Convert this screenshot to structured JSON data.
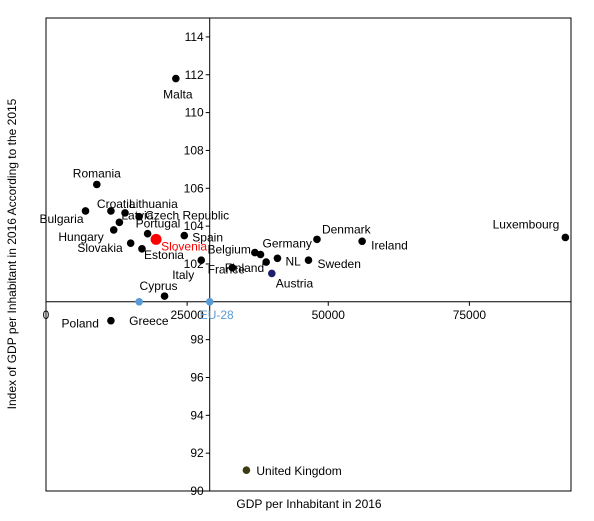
{
  "chart_data": {
    "type": "scatter",
    "title": "",
    "xlabel": "GDP per Inhabitant in 2016",
    "ylabel": "Index of GDP per Inhabitant in 2016 According to the 2015",
    "xlim": [
      0,
      93000
    ],
    "ylim": [
      90,
      115
    ],
    "x_ticks": [
      0,
      25000,
      50000,
      75000
    ],
    "x_tick_labels": [
      "0",
      "25000",
      "50000",
      "75000"
    ],
    "x_axis_crosses_y": 100,
    "y_ticks": [
      90,
      92,
      94,
      96,
      98,
      102,
      104,
      106,
      108,
      110,
      112,
      114
    ],
    "y_tick_labels": [
      "90",
      "92",
      "94",
      "96",
      "98",
      "102",
      "104",
      "106",
      "108",
      "110",
      "112",
      "114"
    ],
    "y_axis_crosses_x": 29000,
    "grid": false,
    "legend": "none",
    "colors": {
      "default": "#000000",
      "slovenia": "#ff0000",
      "eu28": "#5b9bd5",
      "austria": "#1f1f6b",
      "uk": "#3b3b10"
    },
    "points": [
      {
        "label": "Luxembourg",
        "x": 92000,
        "y": 103.4
      },
      {
        "label": "Ireland",
        "x": 56000,
        "y": 103.2
      },
      {
        "label": "Denmark",
        "x": 48000,
        "y": 103.3
      },
      {
        "label": "Sweden",
        "x": 46500,
        "y": 102.2
      },
      {
        "label": "NL",
        "x": 41000,
        "y": 102.3
      },
      {
        "label": "Austria",
        "x": 40000,
        "y": 101.5,
        "color": "austria"
      },
      {
        "label": "Finland",
        "x": 39000,
        "y": 102.1
      },
      {
        "label": "Germany",
        "x": 38000,
        "y": 102.5
      },
      {
        "label": "Belgium",
        "x": 37000,
        "y": 102.6
      },
      {
        "label": "France",
        "x": 33000,
        "y": 101.8
      },
      {
        "label": "United Kingdom",
        "x": 35500,
        "y": 91.1,
        "color": "uk"
      },
      {
        "label": "EU-28",
        "x": 29000,
        "y": 100.0,
        "color": "eu28"
      },
      {
        "label": "Italy",
        "x": 27500,
        "y": 102.2
      },
      {
        "label": "Spain",
        "x": 24500,
        "y": 103.5
      },
      {
        "label": "Cyprus",
        "x": 21000,
        "y": 100.3
      },
      {
        "label": "Slovenia",
        "x": 19500,
        "y": 103.3,
        "color": "slovenia",
        "large": true
      },
      {
        "label": "Portugal",
        "x": 18000,
        "y": 103.6
      },
      {
        "label": "Estonia",
        "x": 17000,
        "y": 102.8
      },
      {
        "label": "Czech Republic",
        "x": 16500,
        "y": 104.5
      },
      {
        "label": "Greece",
        "x": 16500,
        "y": 100.0,
        "color": "eu28"
      },
      {
        "label": "Lithuania",
        "x": 14000,
        "y": 104.7
      },
      {
        "label": "Slovakia",
        "x": 15000,
        "y": 103.1
      },
      {
        "label": "Latvia",
        "x": 13000,
        "y": 104.2
      },
      {
        "label": "Croatia",
        "x": 11500,
        "y": 104.8
      },
      {
        "label": "Hungary",
        "x": 12000,
        "y": 103.8
      },
      {
        "label": "Romania",
        "x": 9000,
        "y": 106.2
      },
      {
        "label": "Bulgaria",
        "x": 7000,
        "y": 104.8
      },
      {
        "label": "Poland",
        "x": 11500,
        "y": 99.0
      },
      {
        "label": "Malta",
        "x": 23000,
        "y": 111.8
      }
    ]
  }
}
